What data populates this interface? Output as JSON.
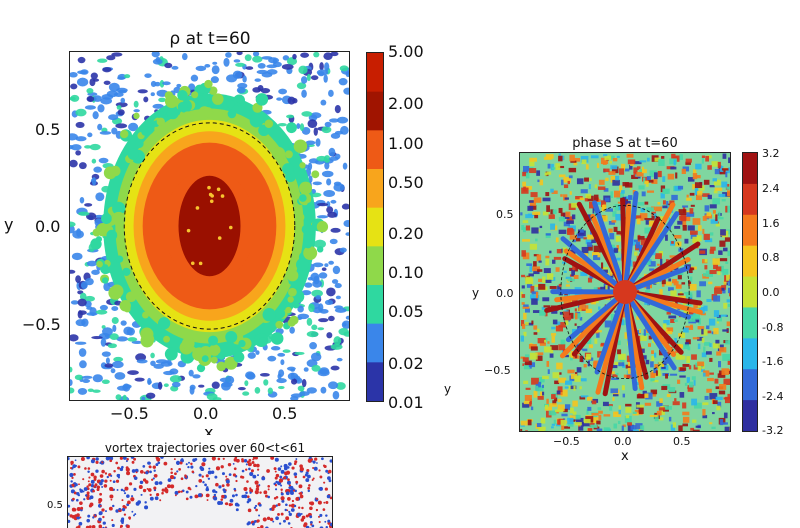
{
  "chart_data": [
    {
      "type": "heatmap",
      "title": "ρ at t=60",
      "xlabel": "x",
      "ylabel": "y",
      "xlim": [
        -0.9,
        0.9
      ],
      "ylim": [
        -0.9,
        0.9
      ],
      "xticks": [
        "−0.5",
        "0.0",
        "0.5"
      ],
      "xtick_values": [
        -0.5,
        0.0,
        0.5
      ],
      "yticks": [
        "0.5",
        "0.0",
        "−0.5"
      ],
      "ytick_values": [
        0.5,
        0.0,
        -0.5
      ],
      "dashed_circle_radius": 0.55,
      "colorbar": {
        "labels": [
          "5.00",
          "2.00",
          "1.00",
          "0.50",
          "0.20",
          "0.10",
          "0.05",
          "0.02",
          "0.01"
        ],
        "colors": [
          "#c81e00",
          "#a01400",
          "#ee5a16",
          "#f8a51c",
          "#e6e214",
          "#8fd94a",
          "#2fd8a0",
          "#3a86ea",
          "#2b34a8"
        ],
        "scale": "log"
      }
    },
    {
      "type": "heatmap",
      "title": "phase S at t=60",
      "xlabel": "x",
      "ylabel": "y",
      "xlim": [
        -0.9,
        0.9
      ],
      "ylim": [
        -0.9,
        0.9
      ],
      "xticks": [
        "−0.5",
        "0.0",
        "0.5"
      ],
      "xtick_values": [
        -0.5,
        0.0,
        0.5
      ],
      "yticks": [
        "0.5",
        "0.0",
        "−0.5"
      ],
      "ytick_values": [
        0.5,
        0.0,
        -0.5
      ],
      "dashed_circle_radius": 0.55,
      "colorbar": {
        "labels": [
          "3.2",
          "2.4",
          "1.6",
          "0.8",
          "0.0",
          "-0.8",
          "-1.6",
          "-2.4",
          "-3.2"
        ],
        "colors": [
          "#a01212",
          "#d6381e",
          "#f47a1c",
          "#f5c51e",
          "#c6e234",
          "#47d7a6",
          "#2ab6ea",
          "#3269d8",
          "#2f2fa0"
        ]
      }
    },
    {
      "type": "heatmap",
      "title": "vortex trajectories over 60<t<61",
      "yticks": [
        "0.5"
      ],
      "ytick_values": [
        0.5
      ]
    }
  ],
  "side_label": "y"
}
